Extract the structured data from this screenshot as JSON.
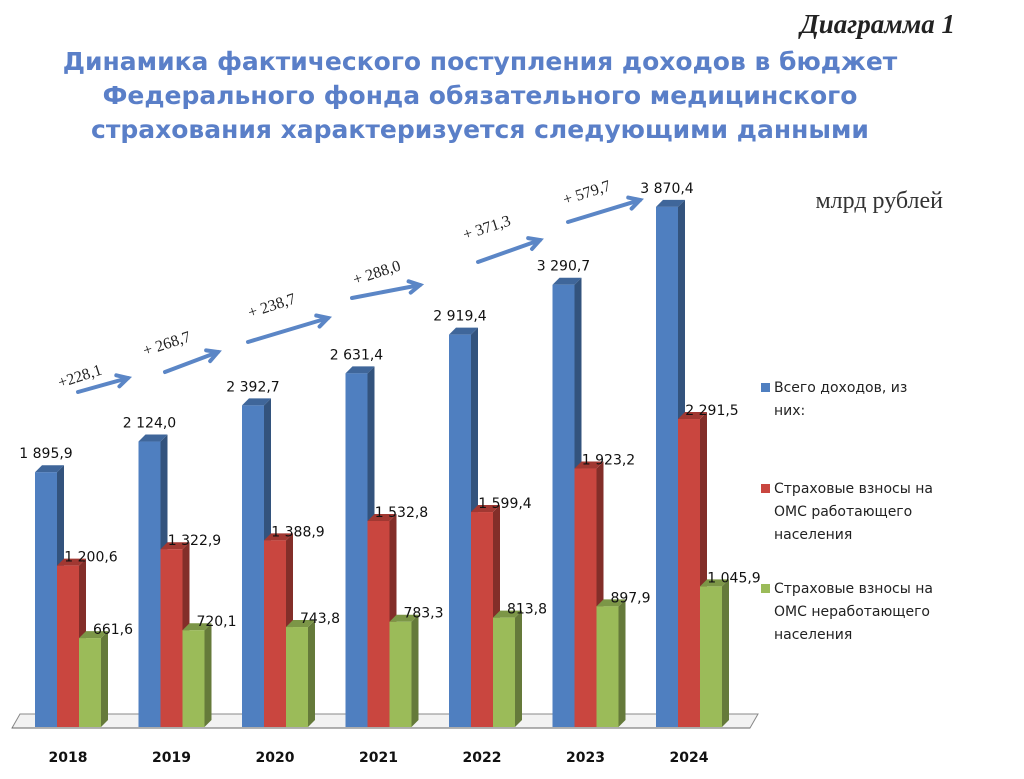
{
  "diagram_label": "Диаграмма 1",
  "chart_data": {
    "type": "bar",
    "title_lines": [
      "Динамика фактического поступления доходов в бюджет",
      "Федерального фонда обязательного медицинского",
      "страхования характеризуется следующими данными"
    ],
    "unit": "млрд  рублей",
    "categories": [
      "2018",
      "2019",
      "2020",
      "2021",
      "2022",
      "2023",
      "2024"
    ],
    "series": [
      {
        "name": "Всего доходов, из них:",
        "legend_lines": [
          "Всего доходов, из",
          "них:"
        ],
        "color": "#4f7fc0",
        "values": [
          1895.9,
          2124.0,
          2392.7,
          2631.4,
          2919.4,
          3290.7,
          3870.4
        ],
        "labels": [
          "1 895,9",
          "2 124,0",
          "2 392,7",
          "2 631,4",
          "2 919,4",
          "3 290,7",
          "3 870,4"
        ]
      },
      {
        "name": "Страховые взносы на ОМС работающего населения",
        "legend_lines": [
          "Страховые взносы на",
          "ОМС работающего",
          "населения"
        ],
        "color": "#c9463f",
        "values": [
          1200.6,
          1322.9,
          1388.9,
          1532.8,
          1599.4,
          1923.2,
          2291.5
        ],
        "labels": [
          "1 200,6",
          "1 322,9",
          "1 388,9",
          "1 532,8",
          "1 599,4",
          "1 923,2",
          "2 291,5"
        ]
      },
      {
        "name": "Страховые взносы на ОМС неработающего населения",
        "legend_lines": [
          "Страховые взносы на",
          "ОМС неработающего",
          "населения"
        ],
        "color": "#9bbb59",
        "values": [
          661.6,
          720.1,
          743.8,
          783.3,
          813.8,
          897.9,
          1045.9
        ],
        "labels": [
          "661,6",
          "720,1",
          "743,8",
          "783,3",
          "813,8",
          "897,9",
          "1 045,9"
        ]
      }
    ],
    "increments": [
      "+228,1",
      "+ 268,7",
      "+ 238,7",
      "+ 288,0",
      "+ 371,3",
      "+ 579,7"
    ],
    "style": "3d-clustered-columns",
    "legend_position": "right",
    "grid": false
  }
}
